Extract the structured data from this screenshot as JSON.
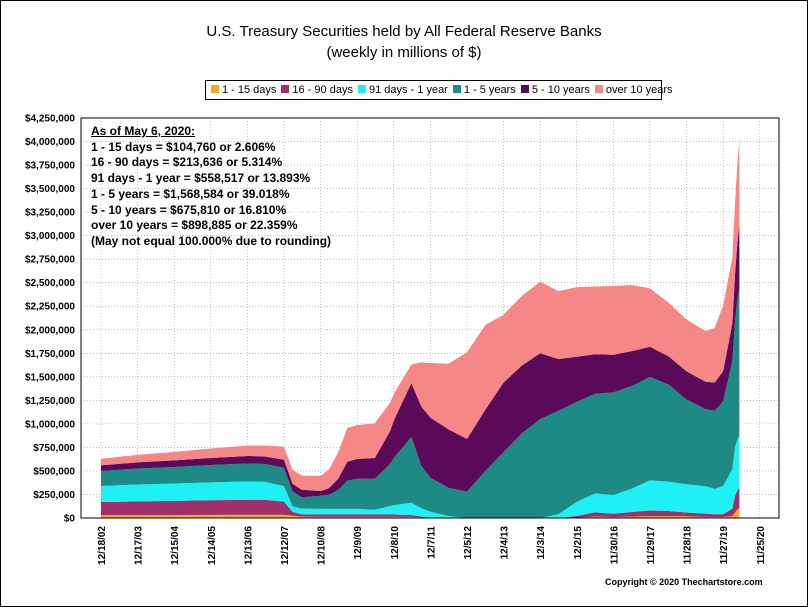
{
  "title_line1": "U.S. Treasury Securities held by All Federal Reserve Banks",
  "title_line2": "(weekly in millions of $)",
  "legend": [
    {
      "label": "1 - 15 days",
      "color": "#f5a623"
    },
    {
      "label": "16 - 90 days",
      "color": "#a0306a"
    },
    {
      "label": "91 days - 1 year",
      "color": "#1ff0f4"
    },
    {
      "label": "1 - 5 years",
      "color": "#1d8a85"
    },
    {
      "label": "5 - 10 years",
      "color": "#5a0a58"
    },
    {
      "label": "over 10 years",
      "color": "#f68787"
    }
  ],
  "annotation": {
    "heading": "As of May 6, 2020:",
    "lines": [
      "1 - 15 days = $104,760 or 2.606%",
      "16 - 90 days = $213,636 or 5.314%",
      "91 days - 1 year = $558,517 or 13.893%",
      "1 - 5 years = $1,568,584 or 39.018%",
      "5 - 10 years = $675,810 or 16.810%",
      "over 10 years = $898,885 or 22.359%",
      "(May not equal 100.000% due to rounding)"
    ]
  },
  "copyright": "Copyright © 2020 Thechartstore.com",
  "chart_data": {
    "type": "area",
    "stacked": true,
    "ylim": [
      0,
      4250000
    ],
    "y_ticks": [
      "$0",
      "$250,000",
      "$500,000",
      "$750,000",
      "$1,000,000",
      "$1,250,000",
      "$1,500,000",
      "$1,750,000",
      "$2,000,000",
      "$2,250,000",
      "$2,500,000",
      "$2,750,000",
      "$3,000,000",
      "$3,250,000",
      "$3,500,000",
      "$3,750,000",
      "$4,000,000",
      "$4,250,000"
    ],
    "x_ticks": [
      "12/18/02",
      "12/17/03",
      "12/15/04",
      "12/14/05",
      "12/13/06",
      "12/12/07",
      "12/10/08",
      "12/9/09",
      "12/8/10",
      "12/7/11",
      "12/5/12",
      "12/4/13",
      "12/3/14",
      "12/2/15",
      "11/30/16",
      "11/29/17",
      "11/28/18",
      "11/27/19",
      "11/25/20"
    ],
    "grid": true,
    "legend_position": "top",
    "x": [
      "12/18/02",
      "12/17/03",
      "12/15/04",
      "12/14/05",
      "12/13/06",
      "6/6/07",
      "12/12/07",
      "3/5/08",
      "6/4/08",
      "12/10/08",
      "3/4/09",
      "6/3/09",
      "9/2/09",
      "12/9/09",
      "6/2/10",
      "11/3/10",
      "12/8/10",
      "6/1/11",
      "9/7/11",
      "12/7/11",
      "6/6/12",
      "12/5/12",
      "6/5/13",
      "12/4/13",
      "6/4/14",
      "12/3/14",
      "6/3/15",
      "12/2/15",
      "6/1/16",
      "11/30/16",
      "6/7/17",
      "11/29/17",
      "6/6/18",
      "11/28/18",
      "6/5/19",
      "9/4/19",
      "11/27/19",
      "2/26/20",
      "3/25/20",
      "4/15/20",
      "5/6/20"
    ],
    "series": [
      {
        "name": "1 - 15 days",
        "values": [
          30000,
          31000,
          32000,
          33000,
          34000,
          34000,
          34000,
          25000,
          15000,
          12000,
          12000,
          12000,
          12000,
          12000,
          12000,
          12000,
          12000,
          12000,
          5000,
          2000,
          0,
          0,
          0,
          0,
          0,
          0,
          0,
          3000,
          15000,
          10000,
          15000,
          20000,
          20000,
          18000,
          12000,
          10000,
          10000,
          20000,
          60000,
          90000,
          104760
        ]
      },
      {
        "name": "16 - 90 days",
        "values": [
          140000,
          145000,
          150000,
          155000,
          160000,
          160000,
          140000,
          40000,
          25000,
          25000,
          25000,
          25000,
          25000,
          25000,
          25000,
          25000,
          25000,
          20000,
          10000,
          5000,
          0,
          0,
          0,
          0,
          0,
          0,
          0,
          20000,
          45000,
          35000,
          50000,
          60000,
          55000,
          40000,
          35000,
          30000,
          30000,
          80000,
          180000,
          200000,
          213636
        ]
      },
      {
        "name": "91 days - 1 year",
        "values": [
          170000,
          180000,
          185000,
          190000,
          195000,
          190000,
          165000,
          60000,
          60000,
          60000,
          60000,
          60000,
          60000,
          60000,
          50000,
          90000,
          100000,
          130000,
          90000,
          60000,
          20000,
          0,
          0,
          0,
          0,
          0,
          40000,
          150000,
          200000,
          200000,
          250000,
          320000,
          310000,
          300000,
          290000,
          270000,
          300000,
          420000,
          520000,
          540000,
          558517
        ]
      },
      {
        "name": "1 - 5 years",
        "values": [
          160000,
          170000,
          175000,
          185000,
          190000,
          190000,
          195000,
          160000,
          120000,
          140000,
          150000,
          200000,
          300000,
          320000,
          330000,
          450000,
          500000,
          700000,
          450000,
          360000,
          300000,
          280000,
          500000,
          700000,
          900000,
          1050000,
          1100000,
          1060000,
          1060000,
          1090000,
          1090000,
          1100000,
          1030000,
          900000,
          820000,
          830000,
          900000,
          1150000,
          1350000,
          1480000,
          1568584
        ]
      },
      {
        "name": "5 - 10 years",
        "values": [
          60000,
          65000,
          70000,
          75000,
          80000,
          80000,
          85000,
          80000,
          80000,
          50000,
          70000,
          120000,
          200000,
          210000,
          220000,
          350000,
          400000,
          570000,
          630000,
          640000,
          620000,
          560000,
          650000,
          740000,
          720000,
          700000,
          550000,
          480000,
          420000,
          400000,
          370000,
          320000,
          300000,
          300000,
          290000,
          300000,
          320000,
          400000,
          500000,
          600000,
          675810
        ]
      },
      {
        "name": "over 10 years",
        "values": [
          70000,
          80000,
          90000,
          100000,
          110000,
          115000,
          140000,
          150000,
          150000,
          160000,
          200000,
          280000,
          360000,
          360000,
          370000,
          300000,
          280000,
          200000,
          470000,
          580000,
          700000,
          920000,
          900000,
          720000,
          740000,
          760000,
          720000,
          740000,
          720000,
          730000,
          700000,
          620000,
          570000,
          550000,
          540000,
          580000,
          700000,
          700000,
          760000,
          840000,
          898885
        ]
      }
    ]
  }
}
